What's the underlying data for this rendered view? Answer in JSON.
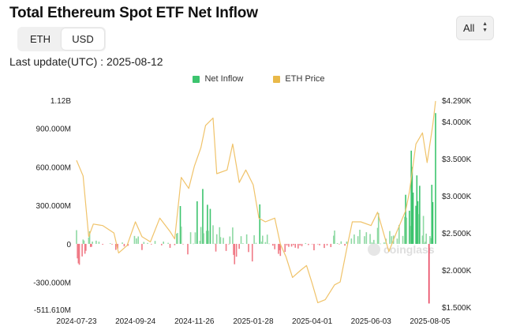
{
  "header": {
    "title": "Total Ethereum Spot ETF Net Inflow",
    "unit_toggle": [
      "ETH",
      "USD"
    ],
    "unit_selected": "USD",
    "range_select": "All",
    "last_update": "Last update(UTC) : 2025-08-12"
  },
  "colors": {
    "inflow_positive": "#8ed9a3",
    "inflow_positive_strong": "#3cc46e",
    "inflow_negative": "#f07a86",
    "inflow_negative_strong": "#e84560",
    "price_line": "#f0c36a",
    "legend_inflow": "#3cc46e",
    "legend_price": "#e9b949"
  },
  "watermark": "coinglass",
  "chart_data": {
    "type": "bar+line",
    "legend": [
      "Net Inflow",
      "ETH Price"
    ],
    "legend_position": "top-center",
    "grid": false,
    "x_tick_labels": [
      "2024-07-23",
      "2024-09-24",
      "2024-11-26",
      "2025-01-28",
      "2025-04-01",
      "2025-06-03",
      "2025-08-05"
    ],
    "x_range": [
      "2024-07-23",
      "2025-08-11"
    ],
    "y_left": {
      "label": "Net Inflow",
      "ticks": [
        "1.12B",
        "900.000M",
        "600.000M",
        "300.000M",
        "0",
        "-300.000M",
        "-511.610M"
      ],
      "range_musd": [
        -511.61,
        1120
      ]
    },
    "y_right": {
      "label": "ETH Price",
      "ticks": [
        "$4.290K",
        "$4.000K",
        "$3.500K",
        "$3.000K",
        "$2.500K",
        "$2.000K",
        "$1.500K"
      ],
      "range_usd": [
        1500,
        4290
      ]
    },
    "series": [
      {
        "name": "ETH Price",
        "kind": "line",
        "points": [
          [
            "2024-07-23",
            3480
          ],
          [
            "2024-07-30",
            3270
          ],
          [
            "2024-08-05",
            2450
          ],
          [
            "2024-08-10",
            2620
          ],
          [
            "2024-08-20",
            2600
          ],
          [
            "2024-09-01",
            2500
          ],
          [
            "2024-09-06",
            2230
          ],
          [
            "2024-09-15",
            2330
          ],
          [
            "2024-09-24",
            2650
          ],
          [
            "2024-10-01",
            2450
          ],
          [
            "2024-10-10",
            2380
          ],
          [
            "2024-10-20",
            2700
          ],
          [
            "2024-10-31",
            2520
          ],
          [
            "2024-11-05",
            2420
          ],
          [
            "2024-11-12",
            3250
          ],
          [
            "2024-11-20",
            3100
          ],
          [
            "2024-11-26",
            3400
          ],
          [
            "2024-12-03",
            3650
          ],
          [
            "2024-12-08",
            3950
          ],
          [
            "2024-12-16",
            4050
          ],
          [
            "2024-12-20",
            3300
          ],
          [
            "2024-12-31",
            3350
          ],
          [
            "2025-01-06",
            3700
          ],
          [
            "2025-01-13",
            3180
          ],
          [
            "2025-01-20",
            3350
          ],
          [
            "2025-01-28",
            3150
          ],
          [
            "2025-02-03",
            2700
          ],
          [
            "2025-02-10",
            2650
          ],
          [
            "2025-02-20",
            2700
          ],
          [
            "2025-02-26",
            2350
          ],
          [
            "2025-03-04",
            2180
          ],
          [
            "2025-03-11",
            1900
          ],
          [
            "2025-03-20",
            2000
          ],
          [
            "2025-03-26",
            2060
          ],
          [
            "2025-04-01",
            1820
          ],
          [
            "2025-04-07",
            1560
          ],
          [
            "2025-04-15",
            1600
          ],
          [
            "2025-04-25",
            1800
          ],
          [
            "2025-05-01",
            1840
          ],
          [
            "2025-05-09",
            2350
          ],
          [
            "2025-05-14",
            2650
          ],
          [
            "2025-05-23",
            2650
          ],
          [
            "2025-06-03",
            2600
          ],
          [
            "2025-06-10",
            2780
          ],
          [
            "2025-06-22",
            2250
          ],
          [
            "2025-06-30",
            2500
          ],
          [
            "2025-07-10",
            2800
          ],
          [
            "2025-07-14",
            3050
          ],
          [
            "2025-07-21",
            3700
          ],
          [
            "2025-07-28",
            3850
          ],
          [
            "2025-08-02",
            3450
          ],
          [
            "2025-08-08",
            3950
          ],
          [
            "2025-08-11",
            4280
          ]
        ]
      },
      {
        "name": "Net Inflow",
        "kind": "bar",
        "unit": "M USD",
        "points": [
          [
            "2024-07-23",
            107
          ],
          [
            "2024-07-24",
            -113
          ],
          [
            "2024-07-25",
            -152
          ],
          [
            "2024-07-26",
            -163
          ],
          [
            "2024-07-29",
            -98
          ],
          [
            "2024-07-30",
            34
          ],
          [
            "2024-07-31",
            26
          ],
          [
            "2024-08-01",
            -77
          ],
          [
            "2024-08-02",
            -54
          ],
          [
            "2024-08-05",
            49
          ],
          [
            "2024-08-06",
            98
          ],
          [
            "2024-08-07",
            -24
          ],
          [
            "2024-08-08",
            -23
          ],
          [
            "2024-08-09",
            18
          ],
          [
            "2024-08-13",
            25
          ],
          [
            "2024-08-16",
            17
          ],
          [
            "2024-08-20",
            -6
          ],
          [
            "2024-08-28",
            5
          ],
          [
            "2024-08-30",
            -5
          ],
          [
            "2024-09-03",
            -47
          ],
          [
            "2024-09-05",
            -37
          ],
          [
            "2024-09-10",
            11
          ],
          [
            "2024-09-12",
            -20
          ],
          [
            "2024-09-16",
            -15
          ],
          [
            "2024-09-23",
            62
          ],
          [
            "2024-09-25",
            43
          ],
          [
            "2024-09-27",
            58
          ],
          [
            "2024-10-01",
            -48
          ],
          [
            "2024-10-03",
            15
          ],
          [
            "2024-10-07",
            7
          ],
          [
            "2024-10-11",
            -5
          ],
          [
            "2024-10-15",
            23
          ],
          [
            "2024-10-22",
            -11
          ],
          [
            "2024-10-24",
            18
          ],
          [
            "2024-10-29",
            8
          ],
          [
            "2024-10-31",
            -31
          ],
          [
            "2024-11-05",
            -10
          ],
          [
            "2024-11-07",
            79
          ],
          [
            "2024-11-08",
            85
          ],
          [
            "2024-11-11",
            295
          ],
          [
            "2024-11-12",
            135
          ],
          [
            "2024-11-14",
            -3
          ],
          [
            "2024-11-19",
            -82
          ],
          [
            "2024-11-22",
            91
          ],
          [
            "2024-11-25",
            2
          ],
          [
            "2024-11-27",
            90
          ],
          [
            "2024-11-29",
            332
          ],
          [
            "2024-12-02",
            24
          ],
          [
            "2024-12-03",
            132
          ],
          [
            "2024-12-05",
            428
          ],
          [
            "2024-12-06",
            83
          ],
          [
            "2024-12-09",
            102
          ],
          [
            "2024-12-10",
            305
          ],
          [
            "2024-12-11",
            102
          ],
          [
            "2024-12-13",
            273
          ],
          [
            "2024-12-16",
            145
          ],
          [
            "2024-12-18",
            2
          ],
          [
            "2024-12-19",
            -60
          ],
          [
            "2024-12-20",
            75
          ],
          [
            "2024-12-23",
            130
          ],
          [
            "2024-12-24",
            53
          ],
          [
            "2024-12-27",
            47
          ],
          [
            "2024-12-30",
            -55
          ],
          [
            "2025-01-02",
            -4
          ],
          [
            "2025-01-03",
            58
          ],
          [
            "2025-01-06",
            128
          ],
          [
            "2025-01-07",
            -86
          ],
          [
            "2025-01-08",
            -159
          ],
          [
            "2025-01-10",
            -100
          ],
          [
            "2025-01-13",
            -39
          ],
          [
            "2025-01-15",
            60
          ],
          [
            "2025-01-17",
            5
          ],
          [
            "2025-01-21",
            74
          ],
          [
            "2025-01-23",
            -64
          ],
          [
            "2025-01-27",
            -137
          ],
          [
            "2025-01-29",
            67
          ],
          [
            "2025-01-31",
            8
          ],
          [
            "2025-02-04",
            308
          ],
          [
            "2025-02-06",
            18
          ],
          [
            "2025-02-07",
            64
          ],
          [
            "2025-02-10",
            14
          ],
          [
            "2025-02-12",
            72
          ],
          [
            "2025-02-14",
            2
          ],
          [
            "2025-02-18",
            -14
          ],
          [
            "2025-02-20",
            -42
          ],
          [
            "2025-02-24",
            -78
          ],
          [
            "2025-02-25",
            -50
          ],
          [
            "2025-02-26",
            -94
          ],
          [
            "2025-03-03",
            -63
          ],
          [
            "2025-03-05",
            -12
          ],
          [
            "2025-03-07",
            -23
          ],
          [
            "2025-03-10",
            -21
          ],
          [
            "2025-03-12",
            -10
          ],
          [
            "2025-03-14",
            -30
          ],
          [
            "2025-03-17",
            -36
          ],
          [
            "2025-03-19",
            -12
          ],
          [
            "2025-03-21",
            -18
          ],
          [
            "2025-03-25",
            6
          ],
          [
            "2025-03-28",
            -9
          ],
          [
            "2025-04-01",
            -3
          ],
          [
            "2025-04-03",
            -50
          ],
          [
            "2025-04-07",
            -3
          ],
          [
            "2025-04-09",
            -11
          ],
          [
            "2025-04-14",
            -32
          ],
          [
            "2025-04-17",
            -12
          ],
          [
            "2025-04-21",
            -25
          ],
          [
            "2025-04-24",
            64
          ],
          [
            "2025-04-25",
            104
          ],
          [
            "2025-04-28",
            6
          ],
          [
            "2025-04-30",
            -2
          ],
          [
            "2025-05-02",
            20
          ],
          [
            "2025-05-06",
            -14
          ],
          [
            "2025-05-08",
            18
          ],
          [
            "2025-05-13",
            42
          ],
          [
            "2025-05-16",
            73
          ],
          [
            "2025-05-20",
            60
          ],
          [
            "2025-05-22",
            110
          ],
          [
            "2025-05-27",
            60
          ],
          [
            "2025-05-29",
            91
          ],
          [
            "2025-06-02",
            77
          ],
          [
            "2025-06-04",
            12
          ],
          [
            "2025-06-06",
            31
          ],
          [
            "2025-06-10",
            125
          ],
          [
            "2025-06-11",
            240
          ],
          [
            "2025-06-13",
            2
          ],
          [
            "2025-06-17",
            11
          ],
          [
            "2025-06-19",
            40
          ],
          [
            "2025-06-23",
            100
          ],
          [
            "2025-06-25",
            60
          ],
          [
            "2025-06-27",
            65
          ],
          [
            "2025-07-01",
            41
          ],
          [
            "2025-07-03",
            148
          ],
          [
            "2025-07-07",
            62
          ],
          [
            "2025-07-09",
            211
          ],
          [
            "2025-07-10",
            383
          ],
          [
            "2025-07-11",
            205
          ],
          [
            "2025-07-14",
            259
          ],
          [
            "2025-07-15",
            140
          ],
          [
            "2025-07-16",
            727
          ],
          [
            "2025-07-17",
            600
          ],
          [
            "2025-07-18",
            400
          ],
          [
            "2025-07-21",
            297
          ],
          [
            "2025-07-22",
            534
          ],
          [
            "2025-07-23",
            333
          ],
          [
            "2025-07-24",
            232
          ],
          [
            "2025-07-25",
            453
          ],
          [
            "2025-07-28",
            65
          ],
          [
            "2025-07-29",
            218
          ],
          [
            "2025-07-30",
            5
          ],
          [
            "2025-07-31",
            17
          ],
          [
            "2025-08-01",
            80
          ],
          [
            "2025-08-04",
            -465
          ],
          [
            "2025-08-05",
            61
          ],
          [
            "2025-08-06",
            45
          ],
          [
            "2025-08-07",
            461
          ],
          [
            "2025-08-08",
            326
          ],
          [
            "2025-08-11",
            1020
          ]
        ]
      }
    ]
  }
}
